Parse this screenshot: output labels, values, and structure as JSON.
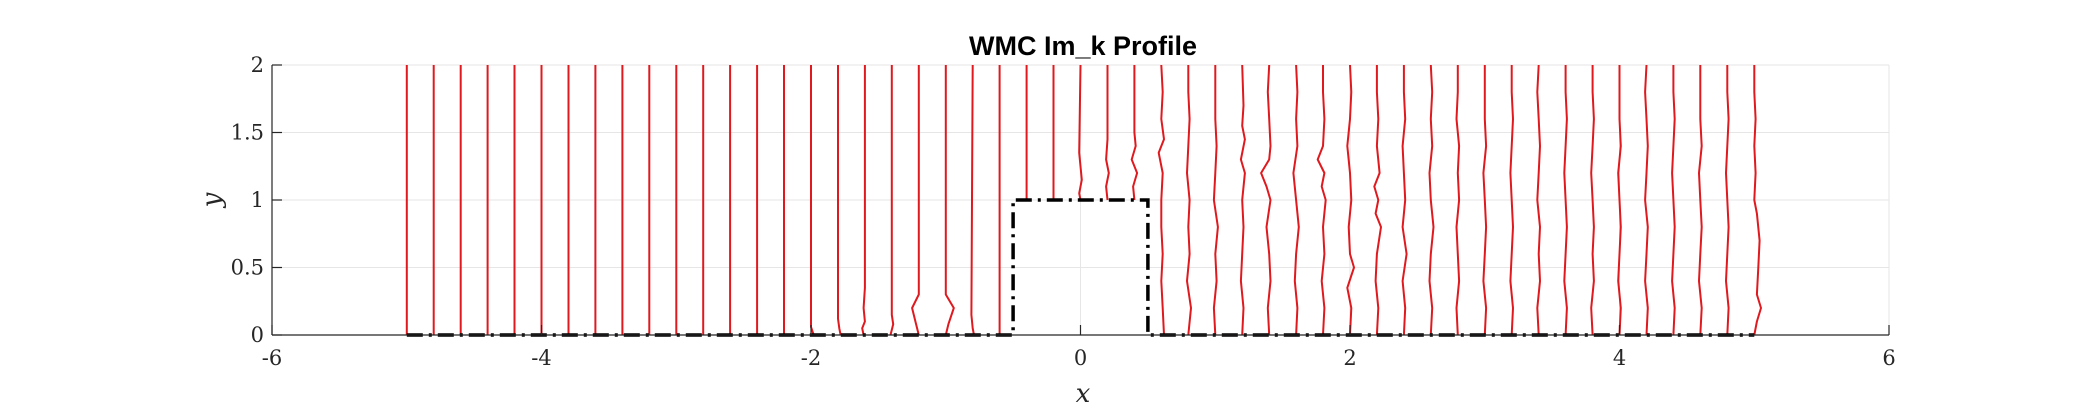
{
  "chart_data": {
    "type": "line",
    "title": "WMC Im_k Profile",
    "xlabel": "x",
    "ylabel": "y",
    "xlim": [
      -6,
      6
    ],
    "ylim": [
      0,
      2
    ],
    "xticks": [
      -6,
      -4,
      -2,
      0,
      2,
      4,
      6
    ],
    "xtick_labels": [
      "-6",
      "-4",
      "-2",
      "0",
      "2",
      "4",
      "6"
    ],
    "yticks": [
      0,
      0.5,
      1,
      1.5,
      2
    ],
    "ytick_labels": [
      "0",
      "0.5",
      "1",
      "1.5",
      "2"
    ],
    "grid": true,
    "colors": {
      "profiles": "#e0191e",
      "geometry": "#000000",
      "grid": "#e6e6e6",
      "axis": "#262626"
    },
    "geometry_outline": {
      "style": "dash-dot",
      "x": [
        -5,
        -0.5,
        -0.5,
        0.5,
        0.5,
        5
      ],
      "y": [
        0,
        0,
        1,
        1,
        0,
        0
      ]
    },
    "profile_stations": [
      -5.0,
      -4.8,
      -4.6,
      -4.4,
      -4.2,
      -4.0,
      -3.8,
      -3.6,
      -3.4,
      -3.2,
      -3.0,
      -2.8,
      -2.6,
      -2.4,
      -2.2,
      -2.0,
      -1.8,
      -1.6,
      -1.4,
      -1.2,
      -1.0,
      -0.8,
      -0.6,
      -0.4,
      -0.2,
      0.0,
      0.2,
      0.4,
      0.6,
      0.8,
      1.0,
      1.2,
      1.4,
      1.6,
      1.8,
      2.0,
      2.2,
      2.4,
      2.6,
      2.8,
      3.0,
      3.2,
      3.4,
      3.6,
      3.8,
      4.0,
      4.2,
      4.4,
      4.6,
      4.8,
      5.0
    ],
    "series": [
      {
        "station": -5.0,
        "y": [
          0,
          2
        ],
        "x": [
          -5.0,
          -5.0
        ]
      },
      {
        "station": -4.8,
        "y": [
          0,
          2
        ],
        "x": [
          -4.8,
          -4.8
        ]
      },
      {
        "station": -4.6,
        "y": [
          0,
          2
        ],
        "x": [
          -4.6,
          -4.6
        ]
      },
      {
        "station": -4.4,
        "y": [
          0,
          2
        ],
        "x": [
          -4.4,
          -4.4
        ]
      },
      {
        "station": -4.2,
        "y": [
          0,
          2
        ],
        "x": [
          -4.2,
          -4.2
        ]
      },
      {
        "station": -4.0,
        "y": [
          0,
          2
        ],
        "x": [
          -4.0,
          -4.0
        ]
      },
      {
        "station": -3.8,
        "y": [
          0,
          2
        ],
        "x": [
          -3.8,
          -3.8
        ]
      },
      {
        "station": -3.6,
        "y": [
          0,
          2
        ],
        "x": [
          -3.6,
          -3.6
        ]
      },
      {
        "station": -3.4,
        "y": [
          0,
          2
        ],
        "x": [
          -3.4,
          -3.4
        ]
      },
      {
        "station": -3.2,
        "y": [
          0,
          2
        ],
        "x": [
          -3.2,
          -3.2
        ]
      },
      {
        "station": -3.0,
        "y": [
          0,
          2
        ],
        "x": [
          -3.0,
          -3.0
        ]
      },
      {
        "station": -2.8,
        "y": [
          0,
          2
        ],
        "x": [
          -2.8,
          -2.8
        ]
      },
      {
        "station": -2.6,
        "y": [
          0,
          2
        ],
        "x": [
          -2.6,
          -2.6
        ]
      },
      {
        "station": -2.4,
        "y": [
          0,
          2
        ],
        "x": [
          -2.4,
          -2.4
        ]
      },
      {
        "station": -2.2,
        "y": [
          0,
          2
        ],
        "x": [
          -2.2,
          -2.2
        ]
      },
      {
        "station": -2.0,
        "y": [
          0,
          0.06,
          2
        ],
        "x": [
          -1.98,
          -2.0,
          -2.0
        ]
      },
      {
        "station": -1.8,
        "y": [
          0,
          0.05,
          0.12,
          2
        ],
        "x": [
          -1.78,
          -1.79,
          -1.8,
          -1.8
        ]
      },
      {
        "station": -1.6,
        "y": [
          0,
          0.05,
          0.1,
          0.2,
          0.35,
          2
        ],
        "x": [
          -1.61,
          -1.62,
          -1.6,
          -1.61,
          -1.6,
          -1.6
        ]
      },
      {
        "station": -1.4,
        "y": [
          0,
          0.08,
          0.15,
          2
        ],
        "x": [
          -1.41,
          -1.39,
          -1.4,
          -1.4
        ]
      },
      {
        "station": -1.2,
        "y": [
          0,
          0.08,
          0.2,
          0.3,
          2
        ],
        "x": [
          -1.2,
          -1.22,
          -1.25,
          -1.2,
          -1.2
        ]
      },
      {
        "station": -1.0,
        "y": [
          0,
          0.08,
          0.2,
          0.3,
          2
        ],
        "x": [
          -1.0,
          -0.98,
          -0.94,
          -1.0,
          -1.0
        ]
      },
      {
        "station": -0.8,
        "y": [
          0,
          0.05,
          0.15,
          2
        ],
        "x": [
          -0.79,
          -0.8,
          -0.81,
          -0.8
        ]
      },
      {
        "station": -0.6,
        "y": [
          0,
          2
        ],
        "x": [
          -0.6,
          -0.6
        ]
      },
      {
        "station": -0.4,
        "y": [
          1,
          2
        ],
        "x": [
          -0.4,
          -0.4
        ]
      },
      {
        "station": -0.2,
        "y": [
          1,
          2
        ],
        "x": [
          -0.2,
          -0.2
        ]
      },
      {
        "station": 0.0,
        "y": [
          1,
          1.05,
          1.15,
          1.25,
          1.35,
          2
        ],
        "x": [
          0.0,
          -0.01,
          0.01,
          0.0,
          -0.01,
          0.0
        ]
      },
      {
        "station": 0.2,
        "y": [
          1,
          1.1,
          1.2,
          1.3,
          1.45,
          2
        ],
        "x": [
          0.2,
          0.19,
          0.21,
          0.19,
          0.2,
          0.2
        ]
      },
      {
        "station": 0.4,
        "y": [
          1,
          1.1,
          1.2,
          1.3,
          1.4,
          1.5,
          2
        ],
        "x": [
          0.4,
          0.39,
          0.42,
          0.38,
          0.41,
          0.4,
          0.4
        ]
      },
      {
        "station": 0.6,
        "y": [
          0,
          0.2,
          0.4,
          0.6,
          0.8,
          1.0,
          1.2,
          1.35,
          1.45,
          1.6,
          1.8,
          2
        ],
        "x": [
          0.62,
          0.61,
          0.6,
          0.61,
          0.6,
          0.6,
          0.61,
          0.58,
          0.62,
          0.6,
          0.61,
          0.6
        ]
      },
      {
        "station": 0.8,
        "y": [
          0,
          0.2,
          0.4,
          0.6,
          0.8,
          1.0,
          1.2,
          1.4,
          1.6,
          1.8,
          2
        ],
        "x": [
          0.8,
          0.82,
          0.79,
          0.81,
          0.8,
          0.81,
          0.79,
          0.8,
          0.81,
          0.8,
          0.8
        ]
      },
      {
        "station": 1.0,
        "y": [
          0,
          0.2,
          0.4,
          0.6,
          0.8,
          1.0,
          1.2,
          1.4,
          1.6,
          1.8,
          2
        ],
        "x": [
          1.0,
          0.99,
          1.01,
          1.0,
          1.02,
          0.99,
          1.0,
          1.01,
          1.0,
          1.0,
          1.0
        ]
      },
      {
        "station": 1.2,
        "y": [
          0,
          0.2,
          0.4,
          0.6,
          0.8,
          1.0,
          1.2,
          1.3,
          1.45,
          1.55,
          1.7,
          2
        ],
        "x": [
          1.2,
          1.21,
          1.19,
          1.2,
          1.21,
          1.2,
          1.22,
          1.19,
          1.22,
          1.2,
          1.21,
          1.2
        ]
      },
      {
        "station": 1.4,
        "y": [
          0,
          0.2,
          0.4,
          0.6,
          0.8,
          1.0,
          1.1,
          1.2,
          1.3,
          1.4,
          1.6,
          1.8,
          2
        ],
        "x": [
          1.4,
          1.39,
          1.41,
          1.4,
          1.38,
          1.41,
          1.38,
          1.34,
          1.4,
          1.41,
          1.4,
          1.39,
          1.4
        ]
      },
      {
        "station": 1.6,
        "y": [
          0,
          0.2,
          0.4,
          0.6,
          0.8,
          1.0,
          1.2,
          1.4,
          1.6,
          1.8,
          2
        ],
        "x": [
          1.6,
          1.61,
          1.59,
          1.6,
          1.62,
          1.6,
          1.58,
          1.61,
          1.6,
          1.61,
          1.6
        ]
      },
      {
        "station": 1.8,
        "y": [
          0,
          0.2,
          0.4,
          0.6,
          0.8,
          1.0,
          1.1,
          1.2,
          1.3,
          1.4,
          1.6,
          1.8,
          2
        ],
        "x": [
          1.8,
          1.81,
          1.79,
          1.81,
          1.8,
          1.82,
          1.79,
          1.81,
          1.76,
          1.8,
          1.81,
          1.8,
          1.8
        ]
      },
      {
        "station": 2.0,
        "y": [
          0,
          0.2,
          0.35,
          0.5,
          0.6,
          0.8,
          1.0,
          1.2,
          1.4,
          1.6,
          1.8,
          2
        ],
        "x": [
          2.0,
          2.01,
          1.98,
          2.03,
          2.0,
          1.99,
          2.01,
          2.0,
          1.98,
          2.0,
          2.01,
          2.0
        ]
      },
      {
        "station": 2.2,
        "y": [
          0,
          0.2,
          0.4,
          0.6,
          0.8,
          0.9,
          1.0,
          1.1,
          1.2,
          1.4,
          1.6,
          1.8,
          2
        ],
        "x": [
          2.2,
          2.21,
          2.19,
          2.2,
          2.23,
          2.19,
          2.21,
          2.18,
          2.22,
          2.2,
          2.21,
          2.2,
          2.2
        ]
      },
      {
        "station": 2.4,
        "y": [
          0,
          0.2,
          0.4,
          0.6,
          0.8,
          1.0,
          1.2,
          1.4,
          1.6,
          1.8,
          2
        ],
        "x": [
          2.4,
          2.41,
          2.39,
          2.42,
          2.39,
          2.41,
          2.4,
          2.39,
          2.41,
          2.4,
          2.4
        ]
      },
      {
        "station": 2.6,
        "y": [
          0,
          0.2,
          0.4,
          0.6,
          0.8,
          1.0,
          1.2,
          1.4,
          1.6,
          1.8,
          2
        ],
        "x": [
          2.6,
          2.61,
          2.59,
          2.6,
          2.62,
          2.6,
          2.59,
          2.61,
          2.6,
          2.61,
          2.6
        ]
      },
      {
        "station": 2.8,
        "y": [
          0,
          0.2,
          0.4,
          0.6,
          0.8,
          1.0,
          1.2,
          1.4,
          1.6,
          1.8,
          2
        ],
        "x": [
          2.8,
          2.79,
          2.81,
          2.8,
          2.79,
          2.81,
          2.8,
          2.81,
          2.79,
          2.8,
          2.8
        ]
      },
      {
        "station": 3.0,
        "y": [
          0,
          0.2,
          0.4,
          0.6,
          0.8,
          1.0,
          1.2,
          1.4,
          1.6,
          1.8,
          2
        ],
        "x": [
          3.0,
          3.01,
          2.99,
          3.0,
          3.01,
          3.0,
          2.99,
          3.01,
          3.0,
          3.0,
          3.0
        ]
      },
      {
        "station": 3.2,
        "y": [
          0,
          0.2,
          0.4,
          0.6,
          0.8,
          1.0,
          1.2,
          1.4,
          1.6,
          1.8,
          2
        ],
        "x": [
          3.2,
          3.21,
          3.19,
          3.2,
          3.21,
          3.2,
          3.19,
          3.2,
          3.21,
          3.2,
          3.2
        ]
      },
      {
        "station": 3.4,
        "y": [
          0,
          0.2,
          0.4,
          0.6,
          0.8,
          1.0,
          1.2,
          1.4,
          1.6,
          1.8,
          2
        ],
        "x": [
          3.4,
          3.39,
          3.41,
          3.4,
          3.41,
          3.39,
          3.4,
          3.41,
          3.4,
          3.39,
          3.4
        ]
      },
      {
        "station": 3.6,
        "y": [
          0,
          0.2,
          0.4,
          0.6,
          0.8,
          1.0,
          1.2,
          1.4,
          1.6,
          1.8,
          2
        ],
        "x": [
          3.6,
          3.61,
          3.59,
          3.6,
          3.61,
          3.6,
          3.59,
          3.6,
          3.61,
          3.6,
          3.6
        ]
      },
      {
        "station": 3.8,
        "y": [
          0,
          0.2,
          0.4,
          0.6,
          0.8,
          1.0,
          1.2,
          1.4,
          1.6,
          1.8,
          2
        ],
        "x": [
          3.8,
          3.79,
          3.81,
          3.8,
          3.81,
          3.8,
          3.79,
          3.8,
          3.81,
          3.8,
          3.8
        ]
      },
      {
        "station": 4.0,
        "y": [
          0,
          0.2,
          0.4,
          0.6,
          0.8,
          1.0,
          1.2,
          1.4,
          1.6,
          1.8,
          2
        ],
        "x": [
          4.0,
          4.01,
          3.99,
          4.0,
          4.01,
          4.0,
          3.99,
          4.01,
          4.0,
          4.0,
          4.0
        ]
      },
      {
        "station": 4.2,
        "y": [
          0,
          0.2,
          0.4,
          0.6,
          0.8,
          1.0,
          1.2,
          1.4,
          1.6,
          1.8,
          2
        ],
        "x": [
          4.2,
          4.21,
          4.19,
          4.2,
          4.21,
          4.19,
          4.2,
          4.21,
          4.2,
          4.19,
          4.2
        ]
      },
      {
        "station": 4.4,
        "y": [
          0,
          0.2,
          0.4,
          0.6,
          0.8,
          1.0,
          1.2,
          1.4,
          1.6,
          1.8,
          2
        ],
        "x": [
          4.4,
          4.41,
          4.39,
          4.4,
          4.41,
          4.4,
          4.39,
          4.4,
          4.41,
          4.4,
          4.4
        ]
      },
      {
        "station": 4.6,
        "y": [
          0,
          0.2,
          0.4,
          0.6,
          0.8,
          1.0,
          1.2,
          1.4,
          1.6,
          1.8,
          2
        ],
        "x": [
          4.6,
          4.61,
          4.59,
          4.6,
          4.61,
          4.6,
          4.59,
          4.61,
          4.6,
          4.6,
          4.6
        ]
      },
      {
        "station": 4.8,
        "y": [
          0,
          0.2,
          0.4,
          0.6,
          0.8,
          1.0,
          1.2,
          1.4,
          1.6,
          1.8,
          2
        ],
        "x": [
          4.8,
          4.81,
          4.79,
          4.8,
          4.81,
          4.8,
          4.79,
          4.8,
          4.81,
          4.8,
          4.8
        ]
      },
      {
        "station": 5.0,
        "y": [
          0,
          0.1,
          0.2,
          0.3,
          0.5,
          0.7,
          0.9,
          1.0,
          1.2,
          1.4,
          1.6,
          1.8,
          2
        ],
        "x": [
          5.0,
          5.02,
          5.05,
          5.02,
          5.03,
          5.04,
          5.02,
          5.0,
          5.01,
          5.0,
          5.01,
          5.0,
          5.0
        ]
      }
    ]
  }
}
